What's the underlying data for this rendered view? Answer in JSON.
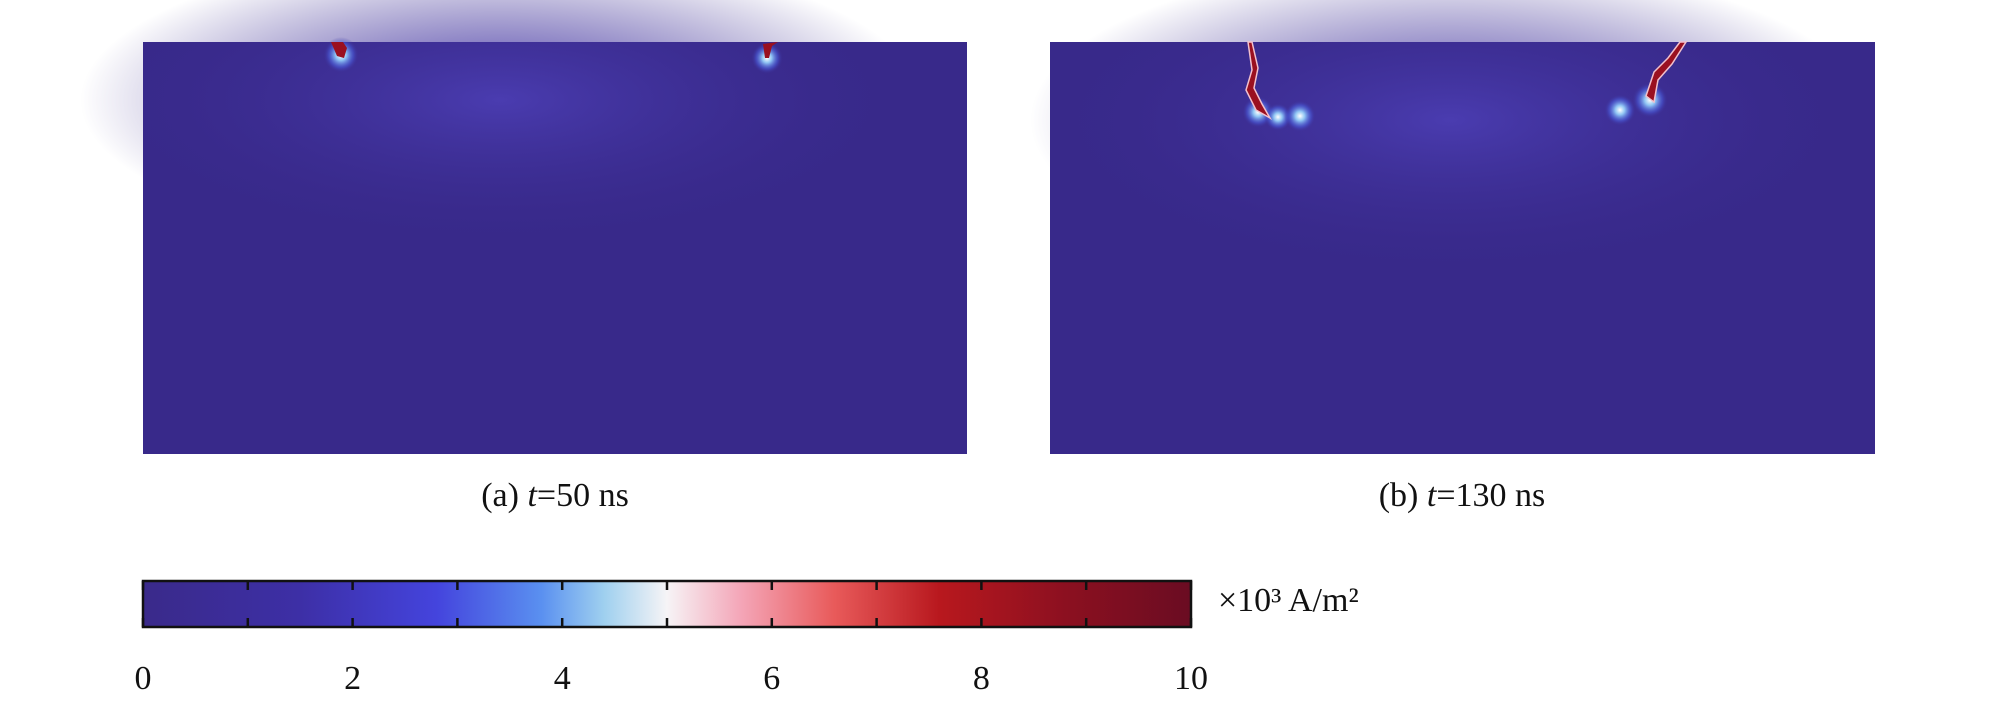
{
  "figure": {
    "panels": [
      {
        "label": "(a)",
        "variable": "t",
        "text": "=50 ns"
      },
      {
        "label": "(b)",
        "variable": "t",
        "text": "=130 ns"
      }
    ],
    "colorbar": {
      "lim": [
        0,
        10
      ],
      "ticks": [
        0,
        2,
        4,
        6,
        8,
        10
      ],
      "minor_ticks": [
        1,
        3,
        5,
        7,
        9
      ],
      "unit": "×10³ A/m²"
    }
  }
}
